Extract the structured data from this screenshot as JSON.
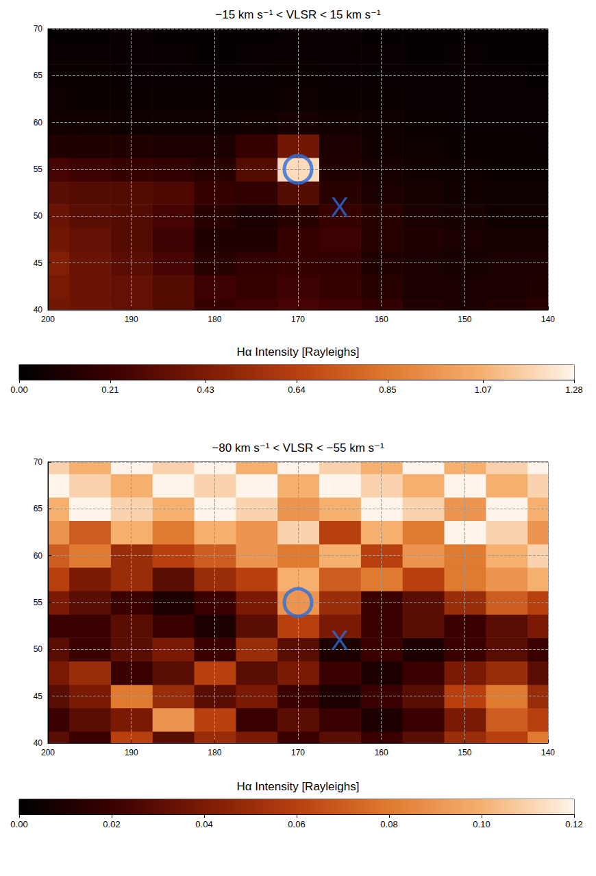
{
  "chart_data": [
    {
      "type": "heatmap",
      "title": "−15 km s⁻¹ < VLSR < 15 km s⁻¹",
      "xlim": [
        140,
        200
      ],
      "xticks": [
        140,
        150,
        160,
        170,
        180,
        190,
        200
      ],
      "ylim": [
        40,
        70
      ],
      "yticks": [
        40,
        45,
        50,
        55,
        60,
        65,
        70
      ],
      "grid": true,
      "cells": {
        "x": [
          140,
          145,
          150,
          155,
          160,
          165,
          170,
          175,
          180,
          185,
          190,
          195,
          200
        ],
        "y": [
          40,
          42.5,
          45,
          47.5,
          50,
          52.5,
          55,
          57.5,
          60,
          62.5,
          65,
          67.5,
          70
        ],
        "values": [
          [
            0.15,
            0.12,
            0.1,
            0.12,
            0.18,
            0.22,
            0.25,
            0.22,
            0.2,
            0.3,
            0.35,
            0.38,
            0.4
          ],
          [
            0.12,
            0.1,
            0.1,
            0.1,
            0.15,
            0.2,
            0.22,
            0.2,
            0.22,
            0.3,
            0.35,
            0.38,
            0.42
          ],
          [
            0.1,
            0.1,
            0.08,
            0.1,
            0.12,
            0.18,
            0.2,
            0.18,
            0.15,
            0.25,
            0.32,
            0.38,
            0.45
          ],
          [
            0.08,
            0.08,
            0.1,
            0.12,
            0.15,
            0.22,
            0.2,
            0.12,
            0.12,
            0.22,
            0.3,
            0.35,
            0.4
          ],
          [
            0.06,
            0.06,
            0.08,
            0.1,
            0.15,
            0.2,
            0.15,
            0.1,
            0.15,
            0.25,
            0.3,
            0.32,
            0.38
          ],
          [
            0.05,
            0.05,
            0.06,
            0.08,
            0.1,
            0.15,
            0.3,
            0.18,
            0.2,
            0.28,
            0.3,
            0.3,
            0.32
          ],
          [
            0.04,
            0.04,
            0.05,
            0.06,
            0.08,
            0.12,
            1.2,
            0.3,
            0.15,
            0.18,
            0.2,
            0.22,
            0.25
          ],
          [
            0.03,
            0.04,
            0.04,
            0.05,
            0.06,
            0.1,
            0.4,
            0.2,
            0.1,
            0.1,
            0.12,
            0.12,
            0.12
          ],
          [
            0.03,
            0.03,
            0.03,
            0.04,
            0.05,
            0.06,
            0.08,
            0.06,
            0.05,
            0.05,
            0.05,
            0.06,
            0.06
          ],
          [
            0.03,
            0.03,
            0.03,
            0.03,
            0.04,
            0.04,
            0.05,
            0.04,
            0.04,
            0.04,
            0.04,
            0.04,
            0.05
          ],
          [
            0.02,
            0.03,
            0.03,
            0.03,
            0.03,
            0.03,
            0.04,
            0.03,
            0.03,
            0.03,
            0.03,
            0.04,
            0.04
          ],
          [
            0.02,
            0.02,
            0.03,
            0.02,
            0.03,
            0.03,
            0.03,
            0.03,
            0.02,
            0.03,
            0.03,
            0.03,
            0.03
          ],
          [
            0.02,
            0.02,
            0.02,
            0.02,
            0.02,
            0.03,
            0.03,
            0.02,
            0.02,
            0.02,
            0.03,
            0.02,
            0.02
          ]
        ]
      },
      "colorbar": {
        "label": "Hα Intensity [Rayleighs]",
        "range": [
          0,
          1.28
        ],
        "ticks": [
          {
            "value": 0,
            "label": "0.00"
          },
          0.21,
          0.43,
          0.64,
          0.85,
          1.07,
          1.28
        ]
      },
      "markers": [
        {
          "x": 170,
          "y": 55,
          "marker": "circle",
          "color": "#2a6fdb"
        },
        {
          "x": 165,
          "y": 51,
          "label": "X",
          "color": "#2a6fdb"
        }
      ]
    },
    {
      "type": "heatmap",
      "title": "−80 km s⁻¹ < VLSR < −55 km s⁻¹",
      "xlim": [
        140,
        200
      ],
      "xticks": [
        140,
        150,
        160,
        170,
        180,
        190,
        200
      ],
      "ylim": [
        40,
        70
      ],
      "yticks": [
        40,
        45,
        50,
        55,
        60,
        65,
        70
      ],
      "grid": true,
      "cells": {
        "x": [
          140,
          145,
          150,
          155,
          160,
          165,
          170,
          175,
          180,
          185,
          190,
          195,
          200
        ],
        "y": [
          40,
          42.5,
          45,
          47.5,
          50,
          52.5,
          55,
          57.5,
          60,
          62.5,
          65,
          67.5,
          70
        ],
        "values": [
          [
            0.08,
            0.06,
            0.05,
            0.03,
            0.02,
            0.03,
            0.02,
            0.04,
            0.05,
            0.03,
            0.06,
            0.02,
            0.03
          ],
          [
            0.06,
            0.07,
            0.04,
            0.02,
            0.01,
            0.02,
            0.03,
            0.02,
            0.06,
            0.09,
            0.04,
            0.03,
            0.02
          ],
          [
            0.05,
            0.08,
            0.06,
            0.03,
            0.02,
            0.01,
            0.02,
            0.04,
            0.03,
            0.05,
            0.08,
            0.04,
            0.03
          ],
          [
            0.03,
            0.05,
            0.04,
            0.02,
            0.01,
            0.02,
            0.04,
            0.03,
            0.06,
            0.03,
            0.02,
            0.05,
            0.04
          ],
          [
            0.02,
            0.03,
            0.02,
            0.01,
            0.02,
            0.01,
            0.03,
            0.05,
            0.02,
            0.04,
            0.03,
            0.02,
            0.03
          ],
          [
            0.04,
            0.03,
            0.02,
            0.03,
            0.02,
            0.04,
            0.06,
            0.03,
            0.01,
            0.02,
            0.03,
            0.02,
            0.02
          ],
          [
            0.06,
            0.07,
            0.05,
            0.03,
            0.02,
            0.05,
            0.09,
            0.04,
            0.02,
            0.01,
            0.02,
            0.03,
            0.04
          ],
          [
            0.1,
            0.09,
            0.08,
            0.06,
            0.08,
            0.07,
            0.1,
            0.06,
            0.05,
            0.03,
            0.05,
            0.04,
            0.06
          ],
          [
            0.11,
            0.1,
            0.08,
            0.09,
            0.06,
            0.1,
            0.08,
            0.09,
            0.07,
            0.06,
            0.05,
            0.08,
            0.07
          ],
          [
            0.09,
            0.11,
            0.12,
            0.08,
            0.1,
            0.06,
            0.11,
            0.09,
            0.1,
            0.08,
            0.1,
            0.07,
            0.09
          ],
          [
            0.1,
            0.12,
            0.09,
            0.11,
            0.12,
            0.1,
            0.09,
            0.11,
            0.12,
            0.1,
            0.11,
            0.12,
            0.1
          ],
          [
            0.11,
            0.1,
            0.12,
            0.1,
            0.11,
            0.12,
            0.1,
            0.12,
            0.11,
            0.12,
            0.1,
            0.11,
            0.12
          ],
          [
            0.12,
            0.11,
            0.1,
            0.12,
            0.1,
            0.11,
            0.12,
            0.1,
            0.12,
            0.11,
            0.12,
            0.1,
            0.11
          ]
        ]
      },
      "colorbar": {
        "label": "Hα Intensity [Rayleighs]",
        "range": [
          0,
          0.12
        ],
        "ticks": [
          {
            "value": 0,
            "label": "0.00"
          },
          0.02,
          0.04,
          0.06,
          0.08,
          {
            "value": 0.1,
            "label": "0.10"
          },
          0.12
        ]
      },
      "markers": [
        {
          "x": 170,
          "y": 55,
          "marker": "circle",
          "color": "#2a6fdb"
        },
        {
          "x": 165,
          "y": 51,
          "label": "X",
          "color": "#2a6fdb"
        }
      ]
    }
  ]
}
